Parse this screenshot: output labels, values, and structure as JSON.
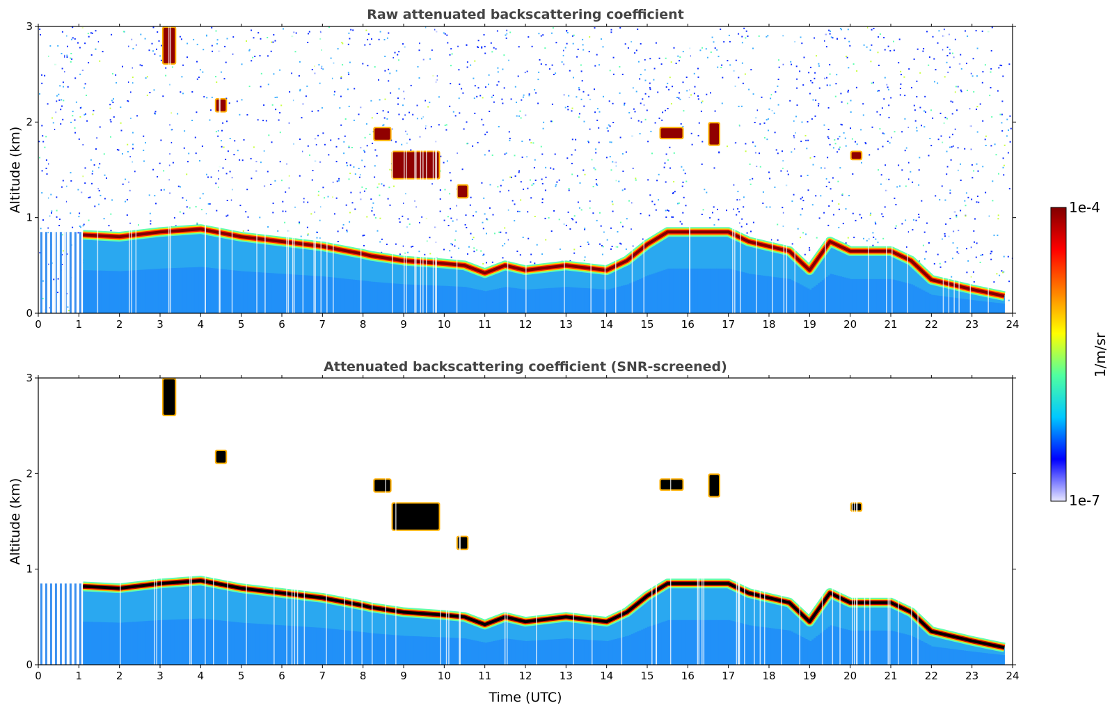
{
  "figure": {
    "colorbar": {
      "max_label": "1e-4",
      "min_label": "1e-7",
      "unit_label": "1/m/sr",
      "scale": "log",
      "colormap": [
        "#e8e8ff",
        "#0000ff",
        "#00c8ff",
        "#50ffa0",
        "#ffff00",
        "#ff8000",
        "#ff0000",
        "#800000"
      ]
    },
    "xlabel": "Time (UTC)"
  },
  "chart_data": [
    {
      "type": "heatmap",
      "title": "Raw attenuated backscattering coefficient",
      "xlabel": "",
      "ylabel": "Altitude (km)",
      "xlim": [
        0,
        24
      ],
      "ylim": [
        0,
        3
      ],
      "xticks": [
        "0",
        "1",
        "2",
        "3",
        "4",
        "5",
        "6",
        "7",
        "8",
        "9",
        "10",
        "11",
        "12",
        "13",
        "14",
        "15",
        "16",
        "17",
        "18",
        "19",
        "20",
        "21",
        "22",
        "23",
        "24"
      ],
      "yticks": [
        "0",
        "1",
        "2",
        "3"
      ],
      "screened": false,
      "boundary_layer_top_km": {
        "time_utc": [
          1.1,
          2,
          3,
          4,
          5,
          6,
          7,
          8,
          8.2,
          9,
          10,
          10.5,
          11,
          11.5,
          12,
          13,
          14,
          14.5,
          15,
          15.5,
          16,
          17,
          17.5,
          18,
          18.5,
          19,
          19.5,
          20,
          21,
          21.5,
          22,
          23,
          23.8
        ],
        "altitude_km": [
          0.82,
          0.8,
          0.85,
          0.88,
          0.8,
          0.75,
          0.7,
          0.62,
          0.6,
          0.55,
          0.52,
          0.5,
          0.42,
          0.5,
          0.45,
          0.5,
          0.45,
          0.55,
          0.72,
          0.85,
          0.85,
          0.85,
          0.75,
          0.7,
          0.65,
          0.45,
          0.75,
          0.65,
          0.65,
          0.55,
          0.35,
          0.25,
          0.18
        ]
      },
      "cloud_features": [
        {
          "time_utc": [
            3.05,
            3.4
          ],
          "altitude_km": [
            2.6,
            3.0
          ]
        },
        {
          "time_utc": [
            4.35,
            4.65
          ],
          "altitude_km": [
            2.1,
            2.25
          ]
        },
        {
          "time_utc": [
            8.25,
            8.7
          ],
          "altitude_km": [
            1.8,
            1.95
          ]
        },
        {
          "time_utc": [
            8.7,
            9.9
          ],
          "altitude_km": [
            1.4,
            1.7
          ]
        },
        {
          "time_utc": [
            10.3,
            10.6
          ],
          "altitude_km": [
            1.2,
            1.35
          ]
        },
        {
          "time_utc": [
            15.3,
            15.9
          ],
          "altitude_km": [
            1.82,
            1.95
          ]
        },
        {
          "time_utc": [
            16.5,
            16.8
          ],
          "altitude_km": [
            1.75,
            2.0
          ]
        },
        {
          "time_utc": [
            20.0,
            20.3
          ],
          "altitude_km": [
            1.6,
            1.7
          ]
        }
      ]
    },
    {
      "type": "heatmap",
      "title": "Attenuated backscattering coefficient (SNR-screened)",
      "xlabel": "Time (UTC)",
      "ylabel": "Altitude (km)",
      "xlim": [
        0,
        24
      ],
      "ylim": [
        0,
        3
      ],
      "xticks": [
        "0",
        "1",
        "2",
        "3",
        "4",
        "5",
        "6",
        "7",
        "8",
        "9",
        "10",
        "11",
        "12",
        "13",
        "14",
        "15",
        "16",
        "17",
        "18",
        "19",
        "20",
        "21",
        "22",
        "23",
        "24"
      ],
      "yticks": [
        "0",
        "1",
        "2",
        "3"
      ],
      "screened": true,
      "boundary_layer_top_km": {
        "time_utc": [
          1.1,
          2,
          3,
          4,
          5,
          6,
          7,
          8,
          8.2,
          9,
          10,
          10.5,
          11,
          11.5,
          12,
          13,
          14,
          14.5,
          15,
          15.5,
          16,
          17,
          17.5,
          18,
          18.5,
          19,
          19.5,
          20,
          21,
          21.5,
          22,
          23,
          23.8
        ],
        "altitude_km": [
          0.82,
          0.8,
          0.85,
          0.88,
          0.8,
          0.75,
          0.7,
          0.62,
          0.6,
          0.55,
          0.52,
          0.5,
          0.42,
          0.5,
          0.45,
          0.5,
          0.45,
          0.55,
          0.72,
          0.85,
          0.85,
          0.85,
          0.75,
          0.7,
          0.65,
          0.45,
          0.75,
          0.65,
          0.65,
          0.55,
          0.35,
          0.25,
          0.18
        ]
      },
      "cloud_features": [
        {
          "time_utc": [
            3.05,
            3.4
          ],
          "altitude_km": [
            2.6,
            3.0
          ]
        },
        {
          "time_utc": [
            4.35,
            4.65
          ],
          "altitude_km": [
            2.1,
            2.25
          ]
        },
        {
          "time_utc": [
            8.25,
            8.7
          ],
          "altitude_km": [
            1.8,
            1.95
          ]
        },
        {
          "time_utc": [
            8.7,
            9.9
          ],
          "altitude_km": [
            1.4,
            1.7
          ]
        },
        {
          "time_utc": [
            10.3,
            10.6
          ],
          "altitude_km": [
            1.2,
            1.35
          ]
        },
        {
          "time_utc": [
            15.3,
            15.9
          ],
          "altitude_km": [
            1.82,
            1.95
          ]
        },
        {
          "time_utc": [
            16.5,
            16.8
          ],
          "altitude_km": [
            1.75,
            2.0
          ]
        },
        {
          "time_utc": [
            20.0,
            20.3
          ],
          "altitude_km": [
            1.6,
            1.7
          ]
        }
      ]
    }
  ]
}
